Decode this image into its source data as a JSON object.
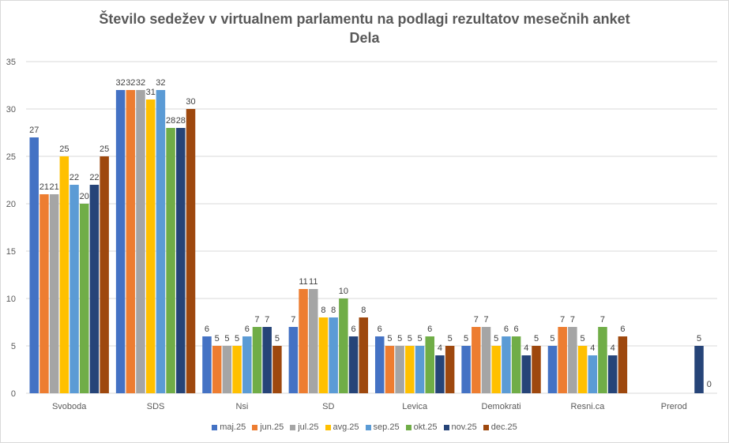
{
  "chart_data": {
    "type": "bar",
    "title": "Število sedežev v virtualnem  parlamentu  na podlagi rezultatov mesečnih anket",
    "title_line2": "Dela",
    "xlabel": "",
    "ylabel": "",
    "ylim": [
      0,
      35
    ],
    "yticks": [
      0,
      5,
      10,
      15,
      20,
      25,
      30,
      35
    ],
    "grid": true,
    "legend_position": "bottom",
    "categories": [
      "Svoboda",
      "SDS",
      "Nsi",
      "SD",
      "Levica",
      "Demokrati",
      "Resni.ca",
      "Prerod"
    ],
    "series": [
      {
        "name": "maj.25",
        "color": "#4472C4",
        "values": [
          27,
          32,
          6,
          7,
          6,
          5,
          5,
          null
        ]
      },
      {
        "name": "jun.25",
        "color": "#ED7D31",
        "values": [
          21,
          32,
          5,
          11,
          5,
          7,
          7,
          null
        ]
      },
      {
        "name": "jul.25",
        "color": "#A5A5A5",
        "values": [
          21,
          32,
          5,
          11,
          5,
          7,
          7,
          null
        ]
      },
      {
        "name": "avg.25",
        "color": "#FFC000",
        "values": [
          25,
          31,
          5,
          8,
          5,
          5,
          5,
          null
        ]
      },
      {
        "name": "sep.25",
        "color": "#5B9BD5",
        "values": [
          22,
          32,
          6,
          8,
          5,
          6,
          4,
          null
        ]
      },
      {
        "name": "okt.25",
        "color": "#70AD47",
        "values": [
          20,
          28,
          7,
          10,
          6,
          6,
          7,
          null
        ]
      },
      {
        "name": "nov.25",
        "color": "#264478",
        "values": [
          22,
          28,
          7,
          6,
          4,
          4,
          4,
          5
        ]
      },
      {
        "name": "dec.25",
        "color": "#9E480E",
        "values": [
          25,
          30,
          5,
          8,
          5,
          5,
          6,
          0
        ]
      }
    ]
  }
}
